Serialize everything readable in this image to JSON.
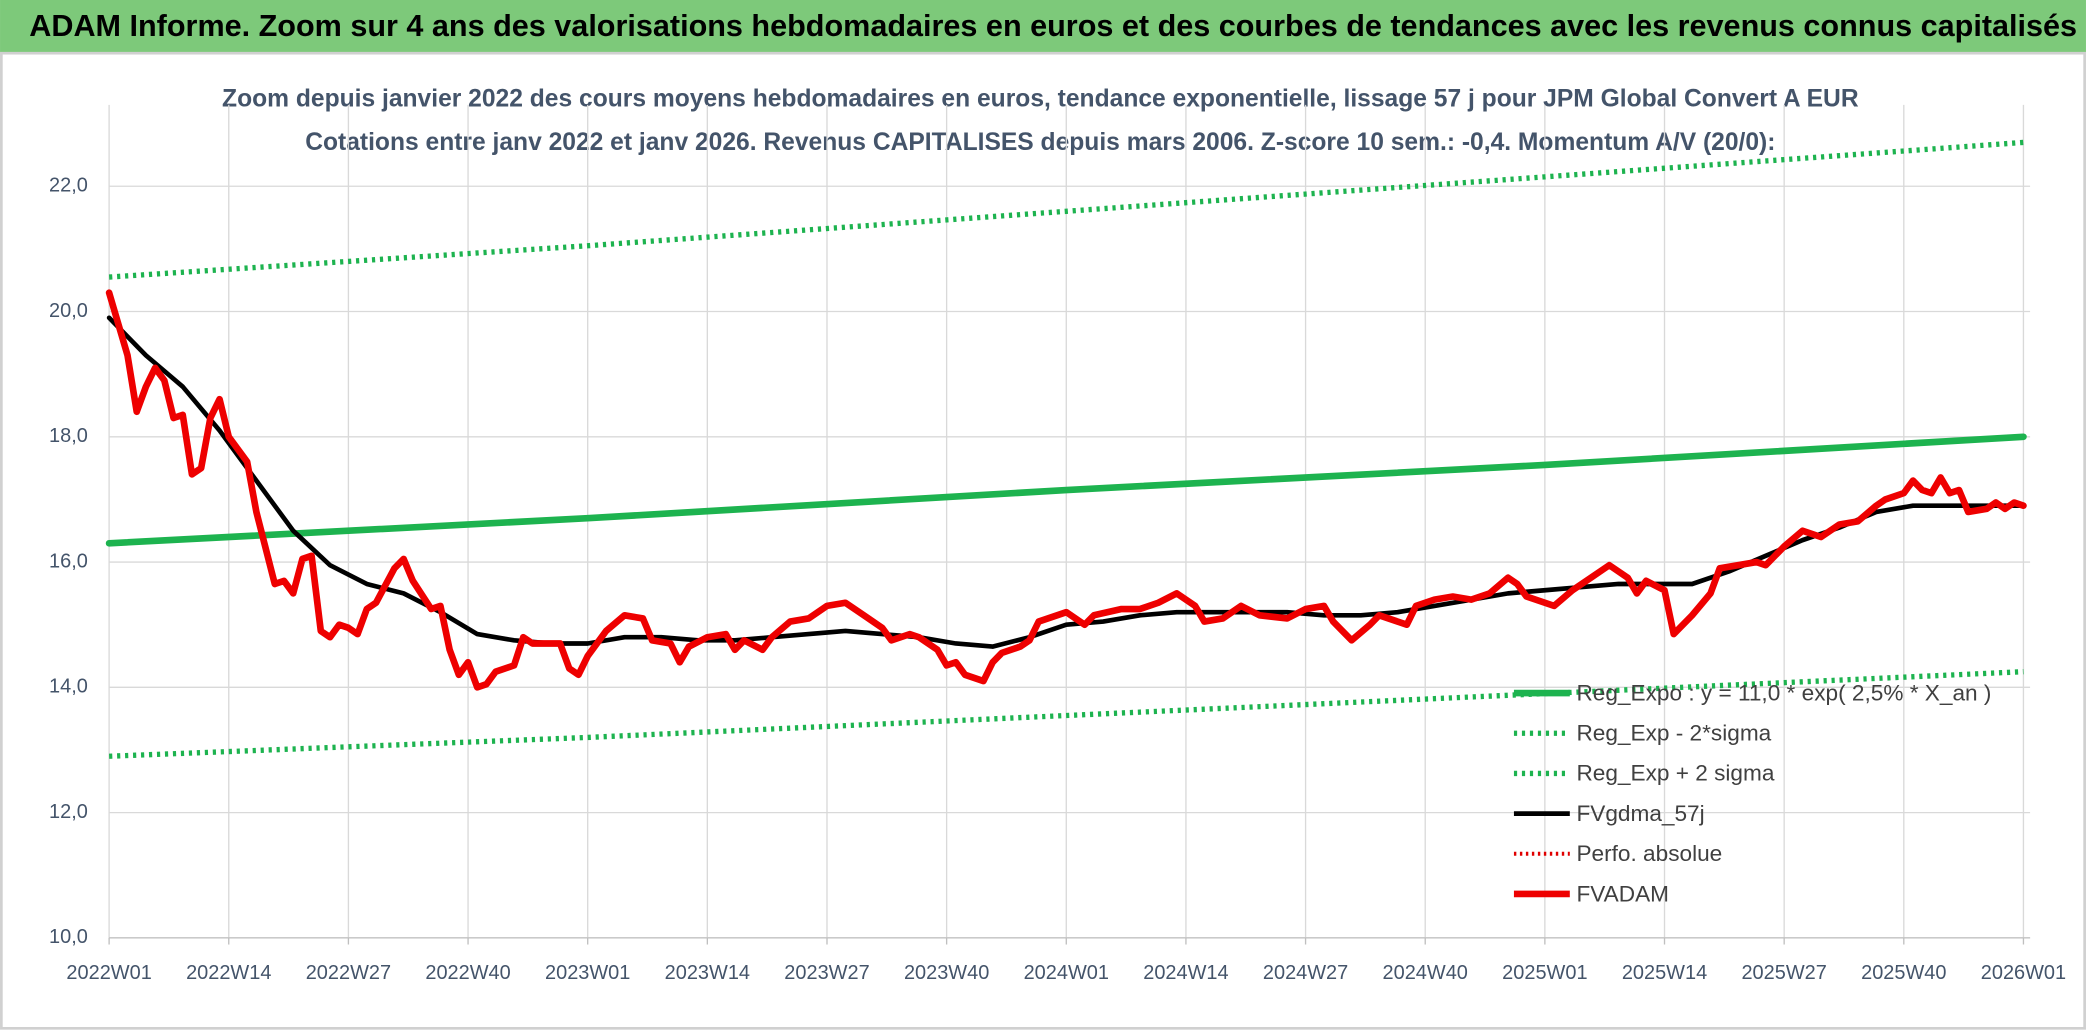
{
  "chart_data": {
    "type": "line",
    "title": "ADAM Informe. Zoom sur 4 ans des valorisations hebdomadaires en euros et des courbes de tendances avec les revenus connus capitalisés",
    "subtitle": [
      "Zoom depuis janvier 2022 des cours moyens hebdomadaires en euros, tendance exponentielle, lissage 57 j pour JPM Global Convert A EUR",
      "Cotations entre janv 2022 et janv 2026. Revenus CAPITALISES depuis mars 2006. Z-score 10 sem.: -0,4. Momentum A/V (20/0):"
    ],
    "xlim": [
      0,
      208
    ],
    "xticks": [
      {
        "value": 0,
        "label": "2022W01"
      },
      {
        "value": 13,
        "label": "2022W14"
      },
      {
        "value": 26,
        "label": "2022W27"
      },
      {
        "value": 39,
        "label": "2022W40"
      },
      {
        "value": 52,
        "label": "2023W01"
      },
      {
        "value": 65,
        "label": "2023W14"
      },
      {
        "value": 78,
        "label": "2023W27"
      },
      {
        "value": 91,
        "label": "2023W40"
      },
      {
        "value": 104,
        "label": "2024W01"
      },
      {
        "value": 117,
        "label": "2024W14"
      },
      {
        "value": 130,
        "label": "2024W27"
      },
      {
        "value": 143,
        "label": "2024W40"
      },
      {
        "value": 156,
        "label": "2025W01"
      },
      {
        "value": 169,
        "label": "2025W14"
      },
      {
        "value": 182,
        "label": "2025W27"
      },
      {
        "value": 195,
        "label": "2025W40"
      },
      {
        "value": 208,
        "label": "2026W01"
      }
    ],
    "ylim": [
      10,
      23.3
    ],
    "yticks": [
      {
        "value": 10,
        "label": "10,0"
      },
      {
        "value": 12,
        "label": "12,0"
      },
      {
        "value": 14,
        "label": "14,0"
      },
      {
        "value": 16,
        "label": "16,0"
      },
      {
        "value": 18,
        "label": "18,0"
      },
      {
        "value": 20,
        "label": "20,0"
      },
      {
        "value": 22,
        "label": "22,0"
      }
    ],
    "grid": true,
    "legend": "right",
    "series": [
      {
        "name": "Reg_Expo : y = 11,0 * exp( 2,5% *  X_an )",
        "color": "#1db34f",
        "width": 5,
        "dash": "solid",
        "x": [
          0,
          52,
          104,
          156,
          208
        ],
        "values": [
          16.3,
          16.7,
          17.15,
          17.55,
          18.0
        ]
      },
      {
        "name": "Reg_Exp - 2*sigma",
        "color": "#1db34f",
        "width": 4,
        "dash": "dotted",
        "x": [
          0,
          52,
          104,
          156,
          208
        ],
        "values": [
          12.9,
          13.2,
          13.55,
          13.9,
          14.25
        ]
      },
      {
        "name": "Reg_Exp + 2 sigma",
        "color": "#1db34f",
        "width": 4,
        "dash": "dotted",
        "x": [
          0,
          52,
          104,
          156,
          208
        ],
        "values": [
          20.55,
          21.05,
          21.6,
          22.15,
          22.7
        ]
      },
      {
        "name": "FVgdma_57j",
        "color": "#000000",
        "width": 3.5,
        "dash": "solid",
        "x": [
          0,
          4,
          8,
          12,
          16,
          20,
          24,
          28,
          32,
          36,
          40,
          44,
          48,
          52,
          56,
          60,
          64,
          68,
          72,
          76,
          80,
          84,
          88,
          92,
          96,
          100,
          104,
          108,
          112,
          116,
          120,
          124,
          128,
          132,
          136,
          140,
          144,
          148,
          152,
          156,
          160,
          164,
          168,
          172,
          176,
          180,
          184,
          188,
          192,
          196,
          200,
          204,
          208
        ],
        "values": [
          19.9,
          19.3,
          18.8,
          18.1,
          17.3,
          16.5,
          15.95,
          15.65,
          15.5,
          15.2,
          14.85,
          14.75,
          14.7,
          14.7,
          14.8,
          14.8,
          14.75,
          14.75,
          14.8,
          14.85,
          14.9,
          14.85,
          14.8,
          14.7,
          14.65,
          14.8,
          15.0,
          15.05,
          15.15,
          15.2,
          15.2,
          15.2,
          15.2,
          15.15,
          15.15,
          15.2,
          15.3,
          15.4,
          15.5,
          15.55,
          15.6,
          15.65,
          15.65,
          15.65,
          15.85,
          16.1,
          16.35,
          16.55,
          16.8,
          16.9,
          16.9,
          16.9,
          16.9
        ]
      },
      {
        "name": "Perfo. absolue",
        "color": "#e00000",
        "width": 3,
        "dash": "dotted",
        "x": [],
        "values": []
      },
      {
        "name": "FVADAM",
        "color": "#ee0000",
        "width": 5,
        "dash": "solid",
        "x": [
          0,
          2,
          3,
          4,
          5,
          6,
          7,
          8,
          9,
          10,
          11,
          12,
          13,
          15,
          16,
          18,
          19,
          20,
          21,
          22,
          23,
          24,
          25,
          26,
          27,
          28,
          29,
          31,
          32,
          33,
          35,
          36,
          37,
          38,
          39,
          40,
          41,
          42,
          44,
          45,
          46,
          47,
          49,
          50,
          51,
          52,
          54,
          56,
          58,
          59,
          61,
          62,
          63,
          65,
          67,
          68,
          69,
          71,
          72,
          74,
          76,
          78,
          80,
          82,
          84,
          85,
          87,
          88,
          90,
          91,
          92,
          93,
          95,
          96,
          97,
          99,
          100,
          101,
          103,
          104,
          106,
          107,
          110,
          112,
          114,
          116,
          118,
          119,
          121,
          123,
          125,
          128,
          130,
          132,
          133,
          135,
          137,
          138,
          141,
          142,
          144,
          146,
          148,
          150,
          152,
          153,
          154,
          156,
          157,
          159,
          161,
          163,
          165,
          166,
          167,
          169,
          170,
          172,
          174,
          175,
          177,
          179,
          180,
          182,
          184,
          186,
          188,
          190,
          192,
          193,
          195,
          196,
          197,
          198,
          199,
          200,
          201,
          202,
          204,
          205,
          206,
          207,
          208
        ],
        "values": [
          20.3,
          19.3,
          18.4,
          18.8,
          19.1,
          18.9,
          18.3,
          18.35,
          17.4,
          17.5,
          18.3,
          18.6,
          18.0,
          17.6,
          16.8,
          15.65,
          15.7,
          15.5,
          16.05,
          16.1,
          14.9,
          14.8,
          15.0,
          14.95,
          14.85,
          15.25,
          15.35,
          15.9,
          16.05,
          15.7,
          15.25,
          15.3,
          14.6,
          14.2,
          14.4,
          14.0,
          14.05,
          14.25,
          14.35,
          14.8,
          14.7,
          14.7,
          14.7,
          14.3,
          14.2,
          14.5,
          14.9,
          15.15,
          15.1,
          14.75,
          14.7,
          14.4,
          14.65,
          14.8,
          14.85,
          14.6,
          14.75,
          14.6,
          14.8,
          15.05,
          15.1,
          15.3,
          15.35,
          15.15,
          14.95,
          14.75,
          14.85,
          14.8,
          14.6,
          14.35,
          14.4,
          14.2,
          14.1,
          14.4,
          14.55,
          14.65,
          14.75,
          15.05,
          15.15,
          15.2,
          15.0,
          15.15,
          15.25,
          15.25,
          15.35,
          15.5,
          15.3,
          15.05,
          15.1,
          15.3,
          15.15,
          15.1,
          15.25,
          15.3,
          15.05,
          14.75,
          15.0,
          15.15,
          15.0,
          15.3,
          15.4,
          15.45,
          15.4,
          15.5,
          15.75,
          15.65,
          15.45,
          15.35,
          15.3,
          15.55,
          15.75,
          15.95,
          15.75,
          15.5,
          15.7,
          15.55,
          14.85,
          15.15,
          15.5,
          15.9,
          15.95,
          16.0,
          15.95,
          16.25,
          16.5,
          16.4,
          16.6,
          16.65,
          16.9,
          17.0,
          17.1,
          17.3,
          17.15,
          17.1,
          17.35,
          17.1,
          17.15,
          16.8,
          16.85,
          16.95,
          16.85,
          16.95,
          16.9
        ]
      }
    ]
  }
}
